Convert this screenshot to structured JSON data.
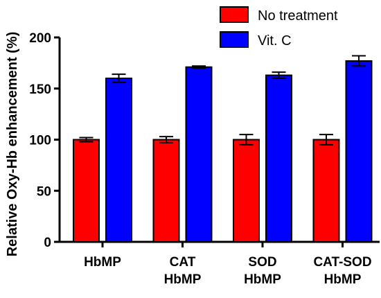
{
  "chart_data": {
    "type": "bar",
    "title": "",
    "xlabel": "",
    "ylabel": "Relative Oxy-Hb enhancement (%)",
    "ylim": [
      0,
      200
    ],
    "yticks": [
      0,
      50,
      100,
      150,
      200
    ],
    "categories": [
      [
        "HbMP"
      ],
      [
        "CAT",
        "HbMP"
      ],
      [
        "SOD",
        "HbMP"
      ],
      [
        "CAT-SOD",
        "HbMP"
      ]
    ],
    "series": [
      {
        "name": "No treatment",
        "color": "#ff0000",
        "values": [
          100,
          100,
          100,
          100
        ],
        "errors": [
          2,
          3,
          5,
          5
        ]
      },
      {
        "name": "Vit. C",
        "color": "#0000ff",
        "values": [
          160,
          171,
          163,
          177
        ],
        "errors": [
          4,
          1,
          3,
          5
        ]
      }
    ],
    "legend_position": "top-right",
    "grid": false
  }
}
